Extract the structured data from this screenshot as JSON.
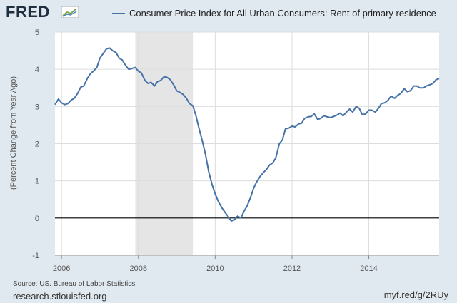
{
  "header": {
    "logo_text": "FRED",
    "logo_icon": "chart-trend-icon",
    "legend_label": "Consumer Price Index for All Urban Consumers: Rent of primary residence"
  },
  "footer": {
    "source": "Source: US. Bureau of Labor Statistics",
    "site": "research.stlouisfed.org",
    "short_link": "myf.red/g/2RUy"
  },
  "colors": {
    "series": "#4572a7",
    "plot_bg": "#ffffff",
    "page_bg": "#e1e9f0",
    "recession": "#e5e5e5",
    "grid": "#dddddd",
    "zero_line": "#000000"
  },
  "chart_data": {
    "type": "line",
    "title": "Consumer Price Index for All Urban Consumers: Rent of primary residence",
    "xlabel": "",
    "ylabel": "(Percent Change from Year Ago)",
    "xlim": [
      2005.83,
      2015.83
    ],
    "ylim": [
      -1,
      5
    ],
    "yticks": [
      -1,
      0,
      1,
      2,
      3,
      4,
      5
    ],
    "xticks": [
      2006,
      2008,
      2010,
      2012,
      2014
    ],
    "grid": true,
    "recession": [
      2007.92,
      2009.42
    ],
    "series": [
      {
        "name": "Consumer Price Index for All Urban Consumers: Rent of primary residence",
        "x": [
          2005.83,
          2005.92,
          2006.0,
          2006.08,
          2006.17,
          2006.25,
          2006.33,
          2006.42,
          2006.5,
          2006.58,
          2006.67,
          2006.75,
          2006.83,
          2006.92,
          2007.0,
          2007.08,
          2007.17,
          2007.25,
          2007.33,
          2007.42,
          2007.5,
          2007.58,
          2007.67,
          2007.75,
          2007.83,
          2007.92,
          2008.0,
          2008.08,
          2008.17,
          2008.25,
          2008.33,
          2008.42,
          2008.5,
          2008.58,
          2008.67,
          2008.75,
          2008.83,
          2008.92,
          2009.0,
          2009.08,
          2009.17,
          2009.25,
          2009.33,
          2009.42,
          2009.5,
          2009.58,
          2009.67,
          2009.75,
          2009.83,
          2009.92,
          2010.0,
          2010.08,
          2010.17,
          2010.25,
          2010.33,
          2010.42,
          2010.5,
          2010.58,
          2010.67,
          2010.75,
          2010.83,
          2010.92,
          2011.0,
          2011.08,
          2011.17,
          2011.25,
          2011.33,
          2011.42,
          2011.5,
          2011.58,
          2011.67,
          2011.75,
          2011.83,
          2011.92,
          2012.0,
          2012.08,
          2012.17,
          2012.25,
          2012.33,
          2012.42,
          2012.5,
          2012.58,
          2012.67,
          2012.75,
          2012.83,
          2012.92,
          2013.0,
          2013.08,
          2013.17,
          2013.25,
          2013.33,
          2013.42,
          2013.5,
          2013.58,
          2013.67,
          2013.75,
          2013.83,
          2013.92,
          2014.0,
          2014.08,
          2014.17,
          2014.25,
          2014.33,
          2014.42,
          2014.5,
          2014.58,
          2014.67,
          2014.75,
          2014.83,
          2014.92,
          2015.0,
          2015.08,
          2015.17,
          2015.25,
          2015.33,
          2015.42,
          2015.5,
          2015.58,
          2015.67,
          2015.75,
          2015.83
        ],
        "values": [
          3.05,
          3.2,
          3.1,
          3.05,
          3.08,
          3.17,
          3.22,
          3.35,
          3.52,
          3.55,
          3.75,
          3.88,
          3.95,
          4.05,
          4.3,
          4.42,
          4.55,
          4.57,
          4.5,
          4.45,
          4.3,
          4.25,
          4.1,
          4.0,
          4.02,
          4.05,
          3.95,
          3.9,
          3.7,
          3.62,
          3.65,
          3.55,
          3.67,
          3.7,
          3.8,
          3.78,
          3.72,
          3.58,
          3.42,
          3.38,
          3.32,
          3.22,
          3.08,
          3.02,
          2.75,
          2.4,
          2.05,
          1.7,
          1.25,
          0.9,
          0.65,
          0.45,
          0.28,
          0.16,
          0.05,
          -0.08,
          -0.05,
          0.05,
          0.0,
          0.18,
          0.32,
          0.55,
          0.8,
          0.97,
          1.12,
          1.22,
          1.3,
          1.43,
          1.48,
          1.62,
          2.0,
          2.1,
          2.4,
          2.42,
          2.47,
          2.45,
          2.53,
          2.55,
          2.68,
          2.72,
          2.73,
          2.8,
          2.65,
          2.68,
          2.75,
          2.72,
          2.7,
          2.73,
          2.77,
          2.82,
          2.75,
          2.85,
          2.93,
          2.85,
          3.0,
          2.95,
          2.78,
          2.8,
          2.9,
          2.9,
          2.85,
          2.95,
          3.08,
          3.1,
          3.17,
          3.28,
          3.22,
          3.3,
          3.35,
          3.48,
          3.4,
          3.42,
          3.55,
          3.55,
          3.5,
          3.5,
          3.55,
          3.58,
          3.62,
          3.72,
          3.75
        ]
      }
    ]
  }
}
